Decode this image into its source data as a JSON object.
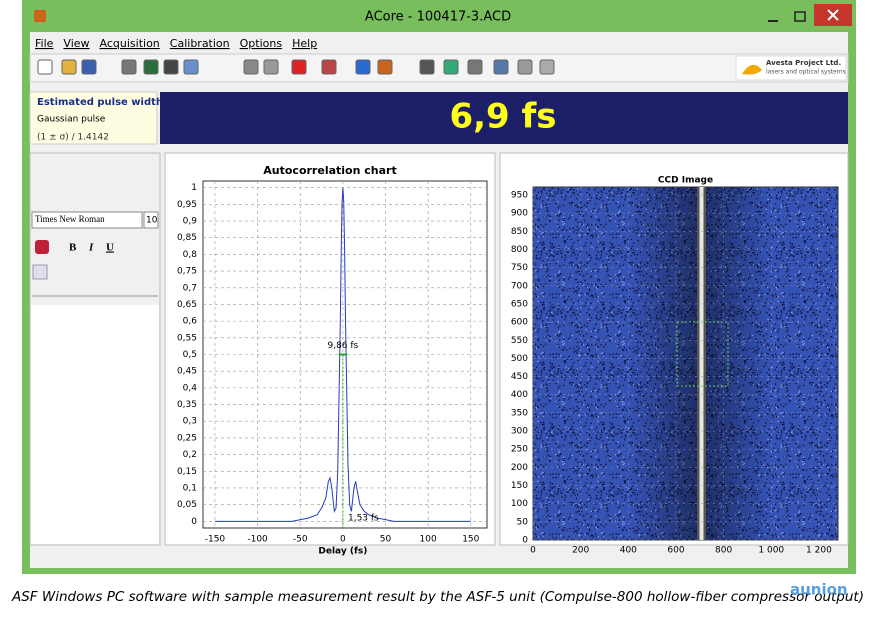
{
  "window": {
    "title": "ACore - 100417-3.ACD"
  },
  "menu": [
    "File",
    "View",
    "Acquisition",
    "Calibration",
    "Options",
    "Help"
  ],
  "logo": {
    "name": "Avesta Project Ltd.",
    "tagline": "lasers and optical systems"
  },
  "result": {
    "heading": "Estimated pulse width",
    "pulse_type": "Gaussian pulse",
    "formula": "(1 ± σ) / 1.4142",
    "value": "6,9 fs"
  },
  "editor": {
    "font": "Times New Roman",
    "size": "10",
    "buttons": [
      "B",
      "I",
      "U"
    ]
  },
  "chart_data": [
    {
      "type": "line",
      "title": "Autocorrelation chart",
      "x_label": "Delay (fs)",
      "color": "#1f3fbf",
      "grid": true,
      "x": [
        -150,
        -100,
        -60,
        -40,
        -30,
        -25,
        -20,
        -17,
        -15,
        -13,
        -10,
        -8,
        -6,
        -5,
        -4,
        -3,
        -2,
        -1,
        0,
        1,
        2,
        3,
        4,
        5,
        6,
        8,
        10,
        13,
        15,
        17,
        20,
        25,
        30,
        40,
        60,
        100,
        150
      ],
      "values": [
        0,
        0,
        0,
        0.01,
        0.02,
        0.04,
        0.07,
        0.12,
        0.13,
        0.1,
        0.03,
        0.04,
        0.15,
        0.3,
        0.45,
        0.6,
        0.8,
        0.95,
        1.0,
        0.96,
        0.82,
        0.62,
        0.47,
        0.32,
        0.17,
        0.05,
        0.03,
        0.1,
        0.12,
        0.09,
        0.05,
        0.03,
        0.02,
        0.01,
        0,
        0,
        0
      ],
      "annotations": [
        "9,86 fs",
        "1,53 fs"
      ],
      "xlim": [
        -164,
        169
      ],
      "ylim": [
        -0.02,
        1.02
      ],
      "xticks": [
        -150,
        -100,
        -50,
        0,
        50,
        100,
        150
      ],
      "yticks": [
        0,
        {
          "value": 0.05,
          "label": "0,05"
        },
        {
          "value": 0.1,
          "label": "0,1"
        },
        {
          "value": 0.15,
          "label": "0,15"
        },
        {
          "value": 0.2,
          "label": "0,2"
        },
        {
          "value": 0.25,
          "label": "0,25"
        },
        {
          "value": 0.3,
          "label": "0,3"
        },
        {
          "value": 0.35,
          "label": "0,35"
        },
        {
          "value": 0.4,
          "label": "0,4"
        },
        {
          "value": 0.45,
          "label": "0,45"
        },
        {
          "value": 0.5,
          "label": "0,5"
        },
        {
          "value": 0.55,
          "label": "0,55"
        },
        {
          "value": 0.6,
          "label": "0,6"
        },
        {
          "value": 0.65,
          "label": "0,65"
        },
        {
          "value": 0.7,
          "label": "0,7"
        },
        {
          "value": 0.75,
          "label": "0,75"
        },
        {
          "value": 0.8,
          "label": "0,8"
        },
        {
          "value": 0.85,
          "label": "0,85"
        },
        {
          "value": 0.9,
          "label": "0,9"
        },
        {
          "value": 0.95,
          "label": "0,95"
        },
        1
      ]
    },
    {
      "type": "image",
      "title": "CCD Image",
      "grid": true,
      "xlim": [
        0,
        1280
      ],
      "ylim": [
        0,
        972
      ],
      "xticks": [
        0,
        200,
        400,
        600,
        800,
        {
          "value": 1000,
          "label": "1 000"
        },
        {
          "value": 1200,
          "label": "1 200"
        }
      ],
      "yticks": [
        0,
        50,
        100,
        150,
        200,
        250,
        300,
        350,
        400,
        450,
        500,
        550,
        600,
        650,
        700,
        750,
        800,
        850,
        900,
        950
      ]
    }
  ],
  "caption": "ASF Windows PC software with sample measurement result by the ASF-5 unit (Compulse-800 hollow-fiber compressor output)",
  "watermark": "aunion"
}
